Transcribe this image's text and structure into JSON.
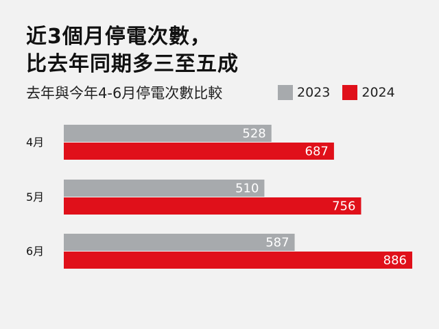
{
  "header": {
    "title_line1": "近3個月停電次數，",
    "title_line2": "比去年同期多三至五成",
    "subtitle": "去年與今年4-6月停電次數比較"
  },
  "chart_data": {
    "type": "bar",
    "orientation": "horizontal",
    "categories": [
      "4月",
      "5月",
      "6月"
    ],
    "series": [
      {
        "name": "2023",
        "color": "#a7aaad",
        "values": [
          528,
          510,
          587
        ]
      },
      {
        "name": "2024",
        "color": "#e0101a",
        "values": [
          687,
          756,
          886
        ]
      }
    ],
    "xlim": [
      0,
      886
    ],
    "grid": false,
    "legend": "top-right"
  }
}
